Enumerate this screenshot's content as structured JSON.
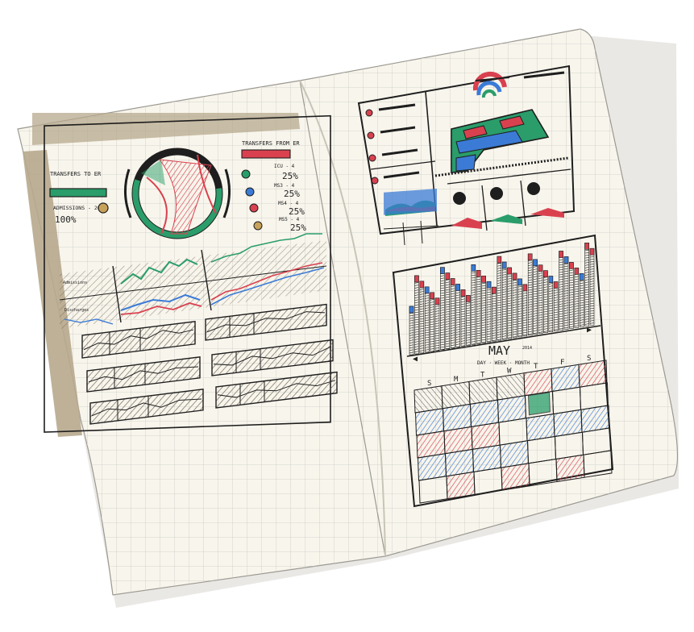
{
  "left_page": {
    "transfers_to_er": "TRANSFERS TO ER",
    "admissions_label": "ADMISSIONS - 20",
    "admissions_value": "100%",
    "transfers_from_er": "TRANSFERS FROM ER",
    "stats": [
      {
        "label": "ICU - 4",
        "value": "25%"
      },
      {
        "label": "MS3 - 4",
        "value": "25%"
      },
      {
        "label": "MS4 - 4",
        "value": "25%"
      },
      {
        "label": "MS5 - 4",
        "value": "25%"
      }
    ],
    "row_label_1": "Admissions",
    "row_label_2": "Discharges"
  },
  "right_page": {
    "calendar": {
      "month": "MAY",
      "year": "2014",
      "views": "DAY · WEEK · MONTH",
      "weekdays": [
        "S",
        "M",
        "T",
        "W",
        "T",
        "F",
        "S"
      ],
      "prev_arrow": "◀",
      "next_arrow": "▶"
    }
  },
  "colors": {
    "red": "#d9414f",
    "green": "#2a9d6a",
    "blue": "#3b7bd6",
    "ink": "#1e1e1e",
    "paper": "#f8f5ec",
    "tape": "#b7a88d"
  }
}
